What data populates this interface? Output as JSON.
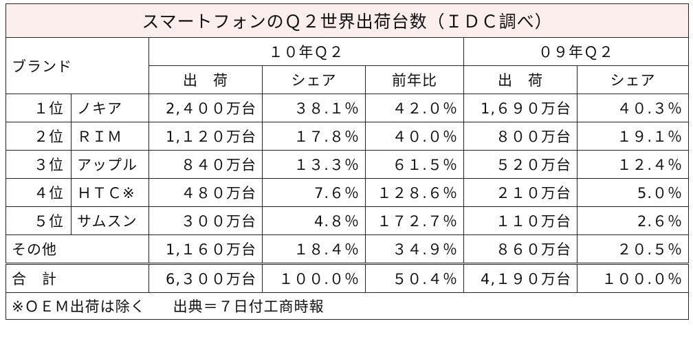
{
  "chart_data": {
    "type": "table",
    "title": "スマートフォンのＱ２世界出荷台数（ＩＤＣ調べ）",
    "brand_label": "ブランド",
    "period_2010": "１０年Ｑ２",
    "period_2009": "０９年Ｑ２",
    "col_shipments": "出　荷",
    "col_share": "シェア",
    "col_yoy": "前年比",
    "rows": [
      {
        "rank": "１位",
        "brand": "ノキア",
        "ship10": "2,４００万台",
        "share10": "３８.１％",
        "yoy": "４２.０％",
        "ship09": "1,６９０万台",
        "share09": "４０.３％"
      },
      {
        "rank": "２位",
        "brand": "ＲＩＭ",
        "ship10": "1,１２０万台",
        "share10": "１７.８％",
        "yoy": "４０.０％",
        "ship09": "８００万台",
        "share09": "１９.１％"
      },
      {
        "rank": "３位",
        "brand": "アップル",
        "ship10": "８４０万台",
        "share10": "１３.３％",
        "yoy": "６１.５％",
        "ship09": "５２０万台",
        "share09": "１２.４％"
      },
      {
        "rank": "４位",
        "brand": "ＨＴＣ※",
        "ship10": "４８０万台",
        "share10": "7.６％",
        "yoy": "１２８.６％",
        "ship09": "２１０万台",
        "share09": "5.０％"
      },
      {
        "rank": "５位",
        "brand": "サムスン",
        "ship10": "３００万台",
        "share10": "4.８％",
        "yoy": "１７２.７％",
        "ship09": "１１０万台",
        "share09": "2.６％"
      }
    ],
    "other": {
      "label": "その他",
      "ship10": "1,１６０万台",
      "share10": "１８.４％",
      "yoy": "３４.９％",
      "ship09": "８６０万台",
      "share09": "２０.５％"
    },
    "total": {
      "label": "合　計",
      "ship10": "6,３００万台",
      "share10": "１００.０％",
      "yoy": "５０.４％",
      "ship09": "4,１９０万台",
      "share09": "１００.０％"
    },
    "note": "※ＯＥＭ出荷は除く",
    "source": "出典＝７日付工商時報"
  }
}
